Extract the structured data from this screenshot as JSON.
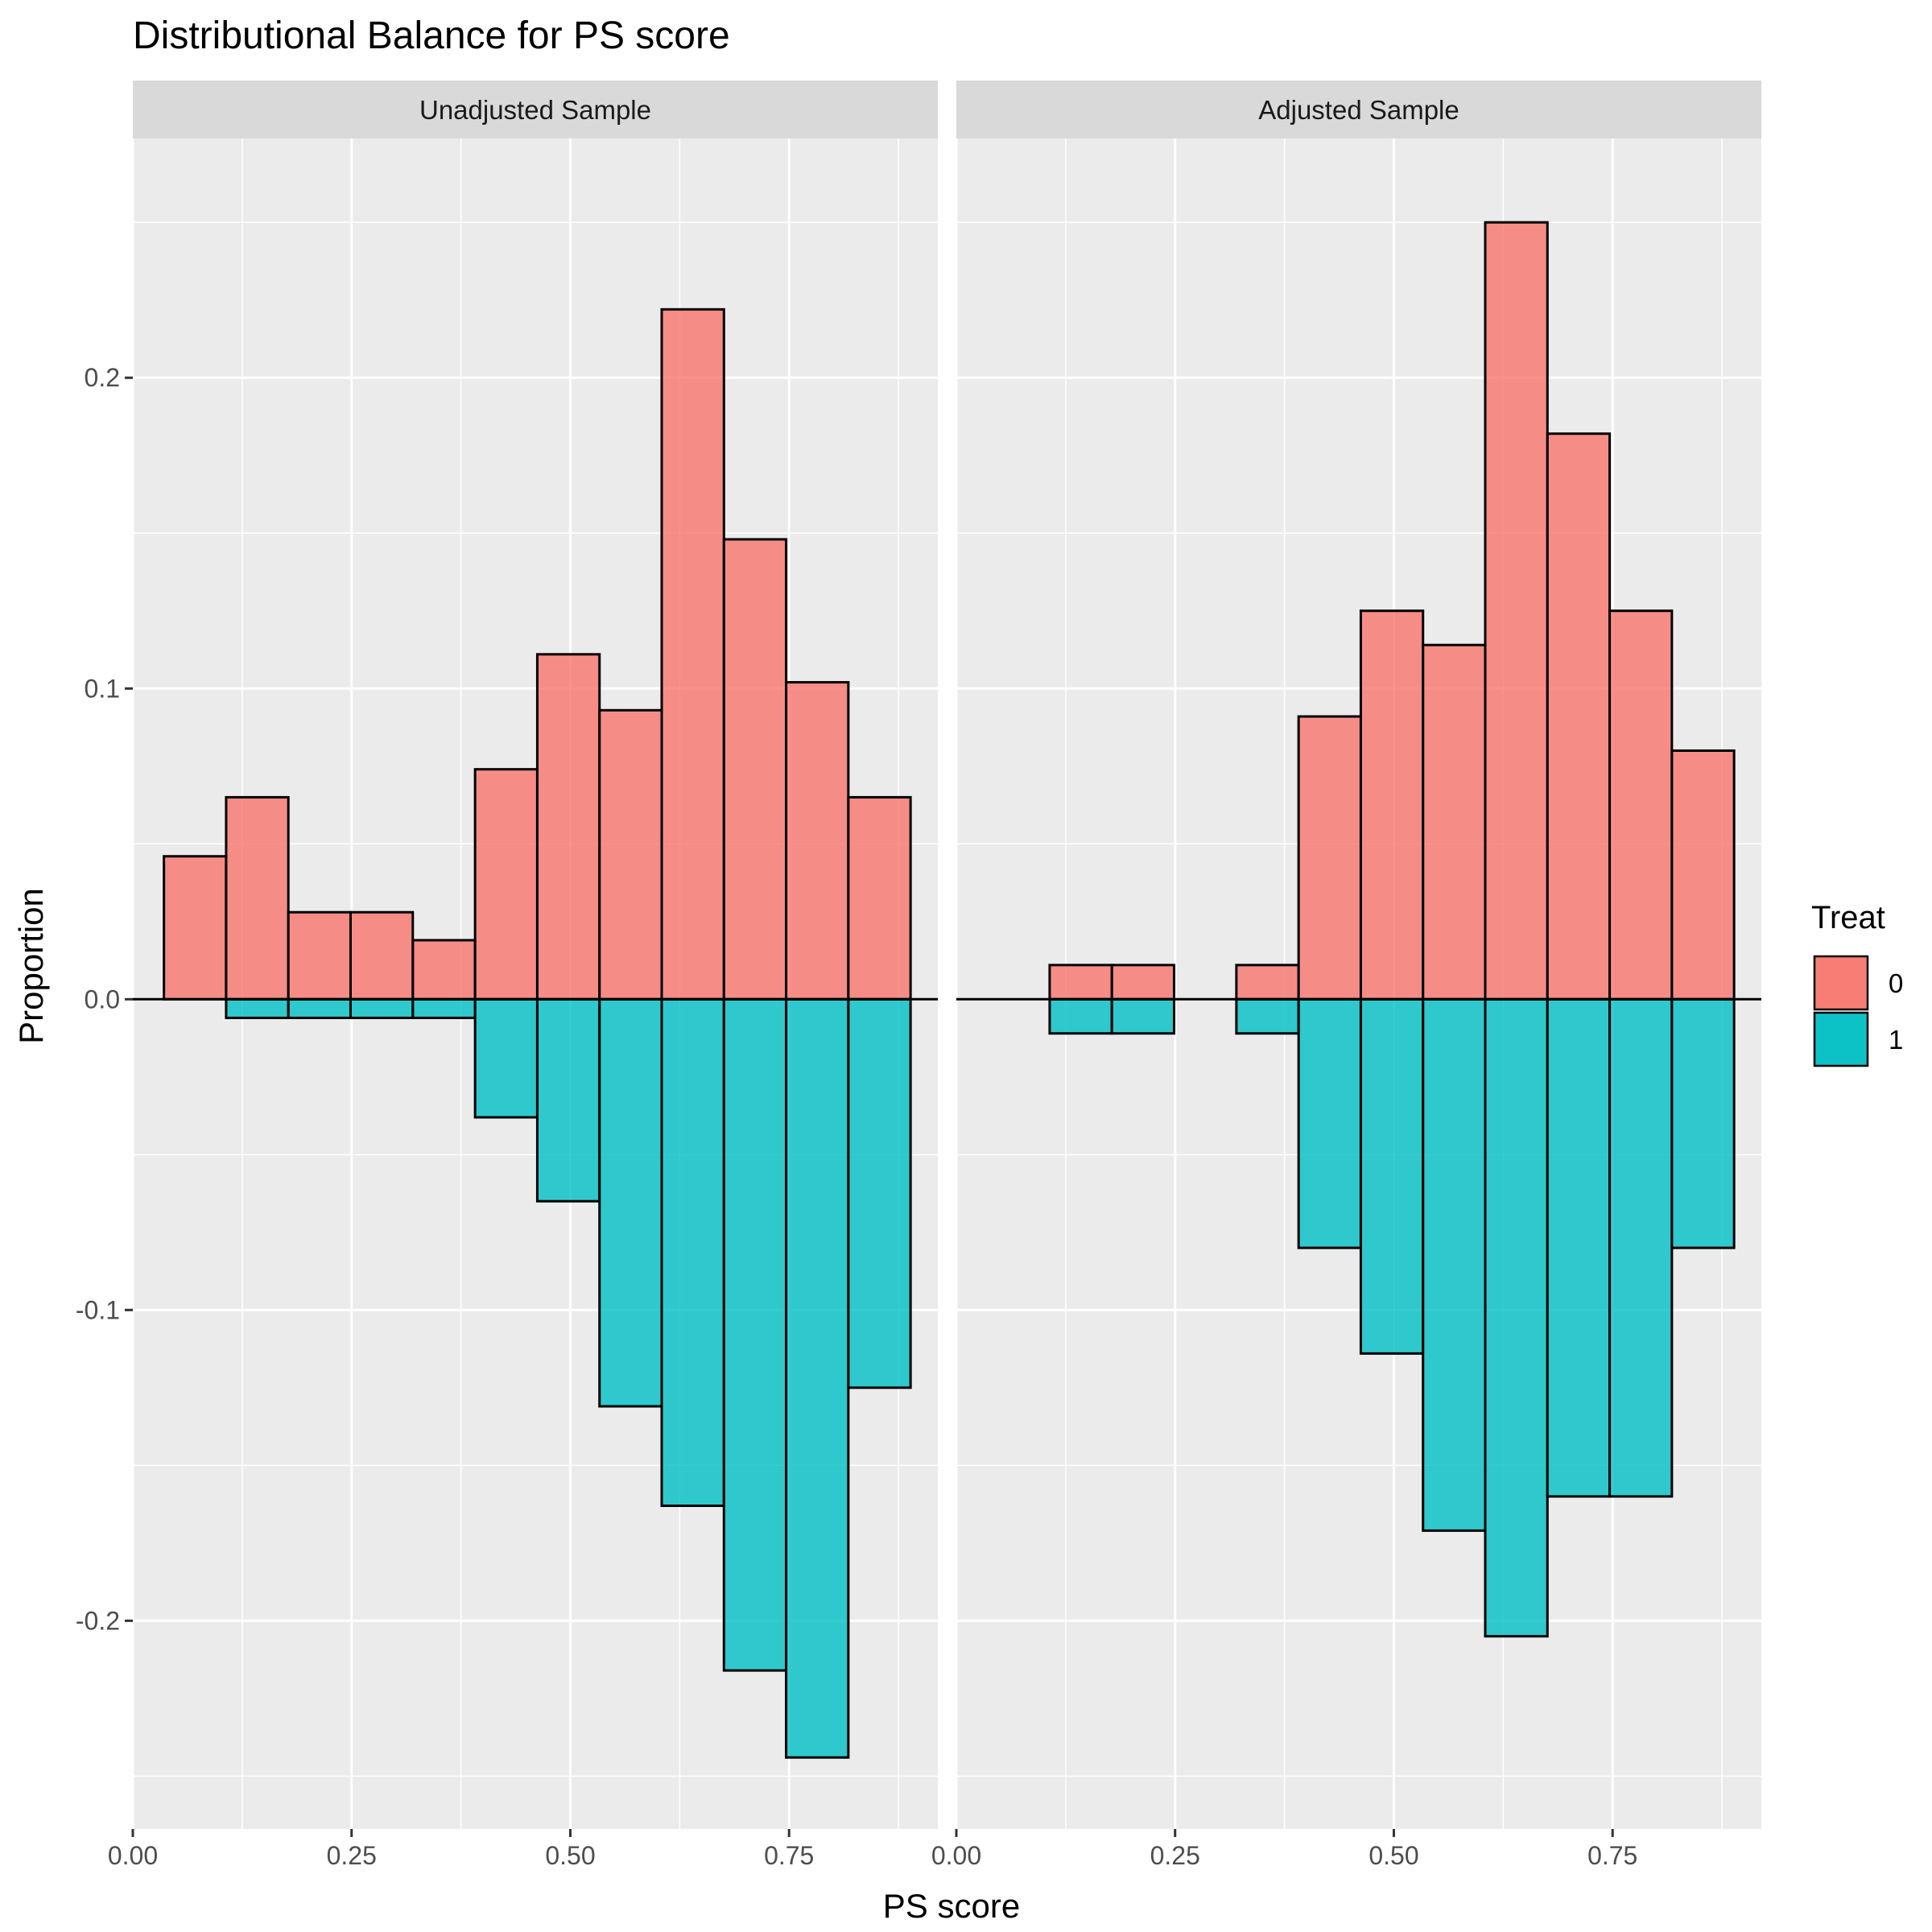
{
  "chart_data": {
    "type": "bar",
    "title": "Distributional Balance for PS score",
    "xlabel": "PS score",
    "ylabel": "Proportion",
    "xlim": [
      0,
      0.92
    ],
    "ylim": [
      -0.267,
      0.277
    ],
    "x_ticks": [
      0.0,
      0.25,
      0.5,
      0.75
    ],
    "x_tick_labels": [
      "0.00",
      "0.25",
      "0.50",
      "0.75"
    ],
    "y_ticks": [
      -0.2,
      -0.1,
      0.0,
      0.1,
      0.2
    ],
    "y_tick_labels": [
      "-0.2",
      "-0.1",
      "0.0",
      "0.1",
      "0.2"
    ],
    "grid": true,
    "legend": {
      "title": "Treat",
      "position": "right",
      "entries": [
        {
          "label": "0",
          "color": "#F8766D"
        },
        {
          "label": "1",
          "color": "#00BFC4"
        }
      ]
    },
    "bin_width": 0.0711,
    "panels": [
      {
        "label": "Unadjusted Sample",
        "bin_centers": [
          0.0711,
          0.1422,
          0.2133,
          0.2844,
          0.3556,
          0.4267,
          0.4978,
          0.5689,
          0.64,
          0.7111,
          0.7822,
          0.8533
        ],
        "series": [
          {
            "name": "0",
            "values": [
              0.046,
              0.065,
              0.028,
              0.028,
              0.019,
              0.074,
              0.111,
              0.093,
              0.222,
              0.148,
              0.102,
              0.065
            ]
          },
          {
            "name": "1",
            "values": [
              0,
              -0.006,
              -0.006,
              -0.006,
              -0.006,
              -0.038,
              -0.065,
              -0.131,
              -0.163,
              -0.216,
              -0.244,
              -0.125
            ]
          }
        ]
      },
      {
        "label": "Adjusted Sample",
        "bin_centers": [
          0.0711,
          0.1422,
          0.2133,
          0.2844,
          0.3556,
          0.4267,
          0.4978,
          0.5689,
          0.64,
          0.7111,
          0.7822,
          0.8533
        ],
        "series": [
          {
            "name": "0",
            "values": [
              0,
              0.011,
              0.011,
              0,
              0.011,
              0.091,
              0.125,
              0.114,
              0.25,
              0.182,
              0.125,
              0.08
            ]
          },
          {
            "name": "1",
            "values": [
              0,
              -0.011,
              -0.011,
              0,
              -0.011,
              -0.08,
              -0.114,
              -0.171,
              -0.205,
              -0.16,
              -0.16,
              -0.08
            ]
          }
        ]
      }
    ]
  }
}
